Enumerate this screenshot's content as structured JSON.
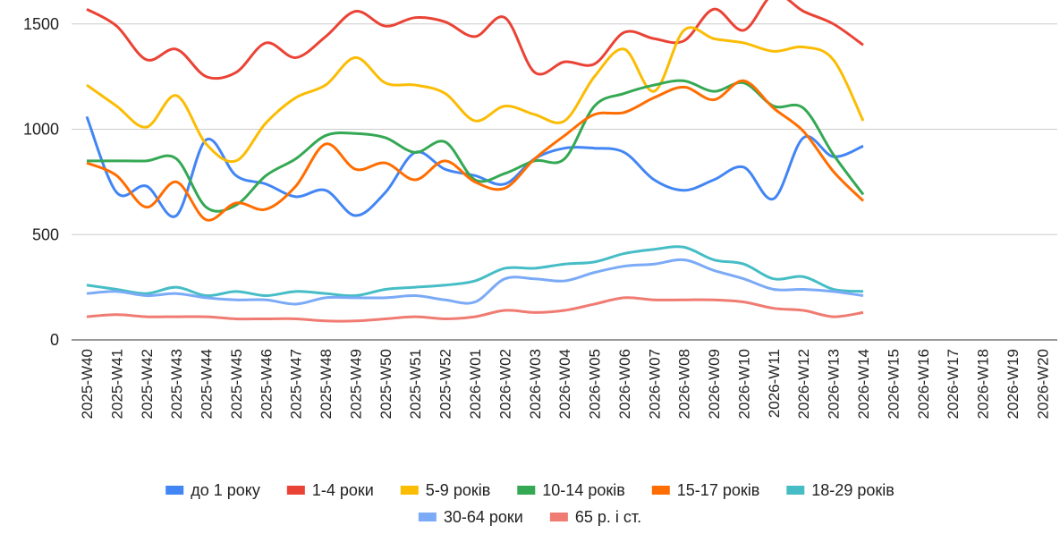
{
  "chart_data": {
    "type": "line",
    "categories": [
      "2025-W40",
      "2025-W41",
      "2025-W42",
      "2025-W43",
      "2025-W44",
      "2025-W45",
      "2025-W46",
      "2025-W47",
      "2025-W48",
      "2025-W49",
      "2025-W50",
      "2025-W51",
      "2025-W52",
      "2026-W01",
      "2026-W02",
      "2026-W03",
      "2026-W04",
      "2026-W05",
      "2026-W06",
      "2026-W07",
      "2026-W08",
      "2026-W09",
      "2026-W10",
      "2026-W11",
      "2026-W12",
      "2026-W13",
      "2026-W14",
      "2026-W15",
      "2026-W16",
      "2026-W17",
      "2026-W18",
      "2026-W19",
      "2026-W20"
    ],
    "series": [
      {
        "name": "до 1 року",
        "color": "#4285f4",
        "values": [
          1060,
          700,
          730,
          590,
          950,
          780,
          740,
          680,
          710,
          590,
          700,
          890,
          810,
          780,
          740,
          860,
          910,
          910,
          890,
          760,
          710,
          760,
          820,
          670,
          960,
          870,
          920,
          null,
          null,
          null,
          null,
          null,
          null
        ]
      },
      {
        "name": "1-4 роки",
        "color": "#ea4335",
        "values": [
          1570,
          1490,
          1330,
          1380,
          1250,
          1270,
          1410,
          1340,
          1440,
          1560,
          1490,
          1530,
          1510,
          1440,
          1530,
          1270,
          1320,
          1310,
          1460,
          1430,
          1420,
          1570,
          1470,
          1640,
          1560,
          1500,
          1400,
          null,
          null,
          null,
          null,
          null,
          null
        ]
      },
      {
        "name": "5-9 років",
        "color": "#fbbc04",
        "values": [
          1210,
          1110,
          1010,
          1160,
          930,
          850,
          1030,
          1150,
          1210,
          1340,
          1220,
          1210,
          1170,
          1040,
          1110,
          1070,
          1040,
          1250,
          1380,
          1180,
          1470,
          1430,
          1410,
          1370,
          1390,
          1330,
          1040,
          null,
          null,
          null,
          null,
          null,
          null
        ]
      },
      {
        "name": "10-14 років",
        "color": "#34a853",
        "values": [
          850,
          850,
          850,
          860,
          630,
          640,
          780,
          860,
          970,
          980,
          960,
          890,
          940,
          760,
          790,
          850,
          860,
          1110,
          1170,
          1210,
          1230,
          1180,
          1220,
          1110,
          1100,
          880,
          690,
          null,
          null,
          null,
          null,
          null,
          null
        ]
      },
      {
        "name": "15-17 років",
        "color": "#ff6d01",
        "values": [
          840,
          780,
          630,
          750,
          570,
          650,
          620,
          730,
          930,
          810,
          840,
          760,
          850,
          750,
          720,
          860,
          970,
          1070,
          1080,
          1150,
          1200,
          1140,
          1230,
          1100,
          990,
          800,
          660,
          null,
          null,
          null,
          null,
          null,
          null
        ]
      },
      {
        "name": "18-29 років",
        "color": "#46bdc6",
        "values": [
          260,
          240,
          220,
          250,
          210,
          230,
          210,
          230,
          220,
          210,
          240,
          250,
          260,
          280,
          340,
          340,
          360,
          370,
          410,
          430,
          440,
          380,
          360,
          290,
          300,
          240,
          230,
          null,
          null,
          null,
          null,
          null,
          null
        ]
      },
      {
        "name": "30-64 роки",
        "color": "#7baaf7",
        "values": [
          220,
          230,
          210,
          220,
          200,
          190,
          190,
          170,
          200,
          200,
          200,
          210,
          190,
          180,
          290,
          290,
          280,
          320,
          350,
          360,
          380,
          330,
          290,
          240,
          240,
          230,
          210,
          null,
          null,
          null,
          null,
          null,
          null
        ]
      },
      {
        "name": "65 р. і ст.",
        "color": "#f07b72",
        "values": [
          110,
          120,
          110,
          110,
          110,
          100,
          100,
          100,
          90,
          90,
          100,
          110,
          100,
          110,
          140,
          130,
          140,
          170,
          200,
          190,
          190,
          190,
          180,
          150,
          140,
          110,
          130,
          null,
          null,
          null,
          null,
          null,
          null
        ]
      }
    ],
    "ylim": [
      0,
      1650
    ],
    "yticks": [
      0,
      500,
      1000,
      1500
    ],
    "grid": true
  }
}
